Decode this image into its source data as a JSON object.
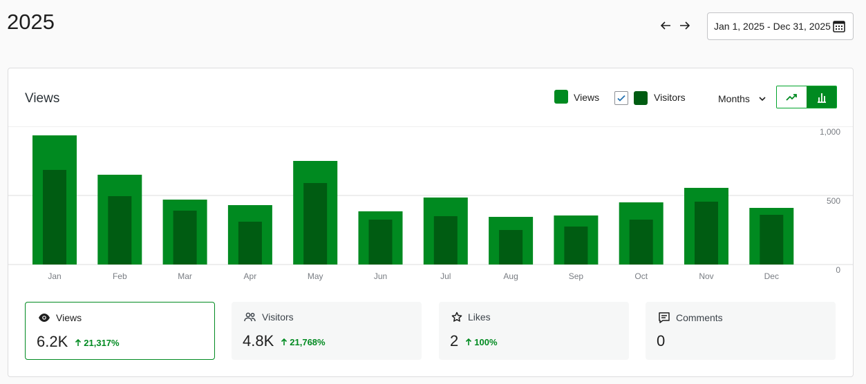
{
  "page": {
    "title": "2025"
  },
  "date_range": {
    "label": "Jan 1, 2025 - Dec 31, 2025"
  },
  "card": {
    "title": "Views",
    "legend": {
      "views": "Views",
      "visitors": "Visitors",
      "visitors_checked": true
    },
    "period": "Months",
    "colors": {
      "views": "#008a20",
      "visitors": "#005c12",
      "grid": "#dcdcde",
      "accent": "#008a20"
    }
  },
  "chart_data": {
    "type": "bar",
    "categories": [
      "Jan",
      "Feb",
      "Mar",
      "Apr",
      "May",
      "Jun",
      "Jul",
      "Aug",
      "Sep",
      "Oct",
      "Nov",
      "Dec"
    ],
    "series": [
      {
        "name": "Views",
        "values": [
          935,
          650,
          470,
          430,
          750,
          385,
          485,
          345,
          355,
          450,
          555,
          410
        ]
      },
      {
        "name": "Visitors",
        "values": [
          685,
          495,
          390,
          310,
          590,
          325,
          350,
          250,
          275,
          325,
          455,
          360
        ]
      }
    ],
    "yticks": [
      0,
      500,
      1000
    ],
    "yticklabels": [
      "0",
      "500",
      "1,000"
    ],
    "ylim": [
      0,
      1000
    ],
    "grid": true
  },
  "stats": [
    {
      "icon": "eye-icon",
      "label": "Views",
      "value": "6.2K",
      "change": "21,317%",
      "active": true
    },
    {
      "icon": "people-icon",
      "label": "Visitors",
      "value": "4.8K",
      "change": "21,768%",
      "active": false
    },
    {
      "icon": "star-icon",
      "label": "Likes",
      "value": "2",
      "change": "100%",
      "active": false
    },
    {
      "icon": "comment-icon",
      "label": "Comments",
      "value": "0",
      "change": "",
      "active": false
    }
  ]
}
